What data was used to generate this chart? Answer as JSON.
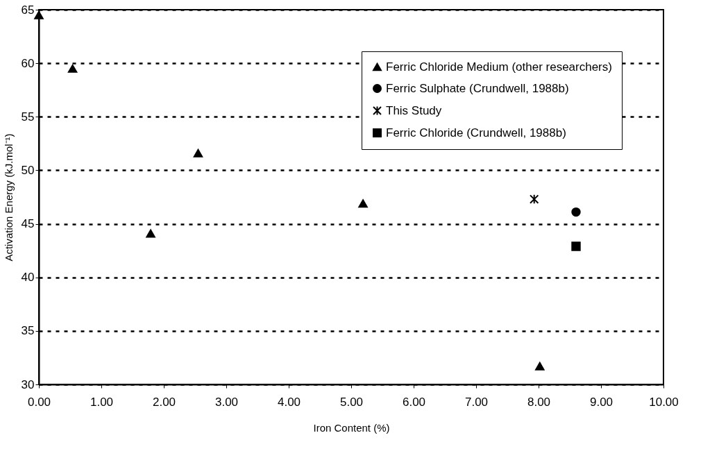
{
  "chart_data": {
    "type": "scatter",
    "xlabel": "Iron Content (%)",
    "ylabel": "Activation Energy (kJ.mol⁻¹)",
    "xlim": [
      0,
      10
    ],
    "ylim": [
      30,
      65
    ],
    "xticks": [
      {
        "value": 0,
        "label": "0.00"
      },
      {
        "value": 1,
        "label": "1.00"
      },
      {
        "value": 2,
        "label": "2.00"
      },
      {
        "value": 3,
        "label": "3.00"
      },
      {
        "value": 4,
        "label": "4.00"
      },
      {
        "value": 5,
        "label": "5.00"
      },
      {
        "value": 6,
        "label": "6.00"
      },
      {
        "value": 7,
        "label": "7.00"
      },
      {
        "value": 8,
        "label": "8.00"
      },
      {
        "value": 9,
        "label": "9.00"
      },
      {
        "value": 10,
        "label": "10.00"
      }
    ],
    "yticks": [
      30,
      35,
      40,
      45,
      50,
      55,
      60,
      65
    ],
    "grid": "y",
    "legend": "top right",
    "series": [
      {
        "name": "Ferric Chloride Medium (other researchers)",
        "color": "#000000",
        "marker": "triangle",
        "x": [
          0,
          0.54,
          1.79,
          2.55,
          5.19,
          8.02
        ],
        "values": [
          64.5,
          59.5,
          44.1,
          51.6,
          46.9,
          31.7
        ]
      },
      {
        "name": "Ferric Sulphate (Crundwell, 1988b)",
        "color": "#000000",
        "marker": "circle",
        "x": [
          8.6
        ],
        "values": [
          46.1
        ]
      },
      {
        "name": "This Study",
        "color": "#000000",
        "marker": "cross",
        "x": [
          7.93
        ],
        "values": [
          47.3
        ]
      },
      {
        "name": "Ferric Chloride (Crundwell, 1988b)",
        "color": "#000000",
        "marker": "square",
        "x": [
          8.6
        ],
        "values": [
          42.9
        ]
      }
    ]
  }
}
